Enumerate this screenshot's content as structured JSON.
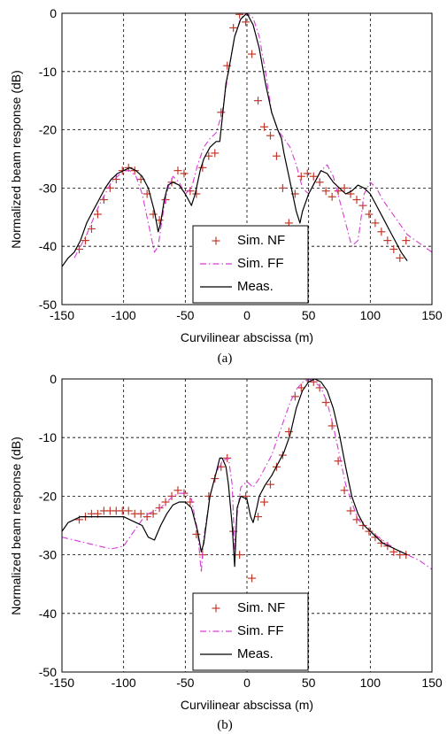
{
  "chart_data": [
    {
      "type": "line",
      "caption": "(a)",
      "xlabel": "Curvilinear abscissa (m)",
      "ylabel": "Normalized beam response (dB)",
      "xlim": [
        -150,
        150
      ],
      "ylim": [
        -50,
        0
      ],
      "xticks": [
        -150,
        -100,
        -50,
        0,
        50,
        100,
        150
      ],
      "yticks": [
        -50,
        -40,
        -30,
        -20,
        -10,
        0
      ],
      "grid": "dashed",
      "legend_position": "bottom-right",
      "series": [
        {
          "name": "Sim. NF",
          "style": "markers-plus",
          "color": "#c0392b",
          "x": [
            -136,
            -131,
            -126,
            -121,
            -116,
            -111,
            -106,
            -101,
            -96,
            -91,
            -86,
            -81,
            -76,
            -71,
            -66,
            -61,
            -56,
            -51,
            -46,
            -41,
            -36,
            -31,
            -26,
            -21,
            -16,
            -11,
            -6,
            -1,
            4,
            9,
            14,
            19,
            24,
            29,
            34,
            39,
            44,
            49,
            54,
            59,
            64,
            69,
            74,
            79,
            84,
            89,
            94,
            99,
            104,
            109,
            114,
            119,
            124,
            129
          ],
          "y": [
            -40.5,
            -39,
            -37,
            -34.5,
            -32,
            -30,
            -28.5,
            -27,
            -26.5,
            -27,
            -28.5,
            -31,
            -34.5,
            -35.5,
            -32,
            -29,
            -27,
            -27.5,
            -30.5,
            -31,
            -26.5,
            -24.5,
            -24,
            -17,
            -9,
            -2.5,
            -0.2,
            -1.5,
            -7,
            -15,
            -19.5,
            -21,
            -24.5,
            -30,
            -36,
            -31,
            -28,
            -27.5,
            -28,
            -29,
            -30.5,
            -31.5,
            -30.5,
            -30,
            -31,
            -32,
            -33,
            -34.5,
            -36,
            -37.5,
            -39,
            -40.5,
            -42,
            -39
          ]
        },
        {
          "name": "Sim. FF",
          "style": "dash-dot",
          "color": "#d63cd6",
          "x": [
            -140,
            -130,
            -120,
            -110,
            -100,
            -95,
            -90,
            -85,
            -80,
            -75,
            -72,
            -70,
            -67,
            -64,
            -60,
            -55,
            -50,
            -45,
            -40,
            -35,
            -30,
            -25,
            -20,
            -15,
            -10,
            -5,
            0,
            5,
            10,
            15,
            20,
            25,
            30,
            35,
            40,
            45,
            50,
            55,
            60,
            65,
            70,
            75,
            80,
            85,
            90,
            92,
            95,
            100,
            105,
            110,
            115,
            120,
            125,
            130,
            140,
            150
          ],
          "y": [
            -42,
            -38,
            -33,
            -29,
            -27,
            -27,
            -28,
            -31,
            -36,
            -41,
            -40,
            -37,
            -33,
            -30,
            -28,
            -29,
            -31,
            -30,
            -26,
            -23,
            -21.5,
            -20.5,
            -17,
            -10,
            -4,
            -0.8,
            0,
            -0.8,
            -4,
            -10,
            -17,
            -20,
            -21.5,
            -23,
            -26,
            -30,
            -31,
            -29,
            -27,
            -26,
            -28,
            -32,
            -36,
            -40,
            -39,
            -36,
            -31,
            -29,
            -30,
            -32,
            -33.5,
            -35,
            -36.5,
            -38,
            -39.5,
            -41
          ]
        },
        {
          "name": "Meas.",
          "style": "solid",
          "color": "#000000",
          "x": [
            -150,
            -145,
            -140,
            -135,
            -130,
            -125,
            -120,
            -115,
            -110,
            -105,
            -100,
            -95,
            -90,
            -85,
            -80,
            -75,
            -72,
            -70,
            -67,
            -64,
            -60,
            -55,
            -50,
            -45,
            -42,
            -38,
            -35,
            -30,
            -25,
            -22,
            -20,
            -17,
            -15,
            -10,
            -5,
            0,
            5,
            10,
            15,
            20,
            25,
            28,
            30,
            35,
            40,
            43,
            45,
            50,
            55,
            60,
            65,
            70,
            75,
            80,
            85,
            90,
            95,
            100,
            105,
            110,
            115,
            120,
            125,
            130
          ],
          "y": [
            -43.5,
            -42,
            -41,
            -39,
            -36,
            -34,
            -32,
            -30,
            -28.5,
            -27.5,
            -27,
            -26.5,
            -27,
            -28,
            -30,
            -34,
            -37.5,
            -36,
            -32,
            -29.5,
            -29,
            -29.5,
            -31,
            -33,
            -31,
            -27,
            -25,
            -23,
            -22,
            -22,
            -18,
            -12,
            -10,
            -4,
            -1,
            0,
            -2,
            -6,
            -12,
            -17,
            -20,
            -21.5,
            -24,
            -29,
            -34,
            -36,
            -34,
            -31,
            -29,
            -27,
            -27.5,
            -29,
            -30,
            -31,
            -30.5,
            -29.5,
            -30,
            -31,
            -33,
            -35,
            -37,
            -39,
            -41,
            -42.5
          ]
        }
      ]
    },
    {
      "type": "line",
      "caption": "(b)",
      "xlabel": "Curvilinear abscissa (m)",
      "ylabel": "Normalized beam response (dB)",
      "xlim": [
        -150,
        150
      ],
      "ylim": [
        -50,
        0
      ],
      "xticks": [
        -150,
        -100,
        -50,
        0,
        50,
        100,
        150
      ],
      "yticks": [
        -50,
        -40,
        -30,
        -20,
        -10,
        0
      ],
      "grid": "dashed",
      "legend_position": "bottom-right",
      "series": [
        {
          "name": "Sim. NF",
          "style": "markers-plus",
          "color": "#c0392b",
          "x": [
            -136,
            -131,
            -126,
            -121,
            -116,
            -111,
            -106,
            -101,
            -96,
            -91,
            -86,
            -81,
            -76,
            -71,
            -66,
            -61,
            -56,
            -51,
            -46,
            -41,
            -36,
            -31,
            -26,
            -21,
            -16,
            -11,
            -6,
            -1,
            4,
            9,
            14,
            19,
            24,
            29,
            34,
            39,
            44,
            49,
            54,
            59,
            64,
            69,
            74,
            79,
            84,
            89,
            94,
            99,
            104,
            109,
            114,
            119,
            124,
            129
          ],
          "y": [
            -24,
            -23.5,
            -23,
            -23,
            -22.5,
            -22.5,
            -22.5,
            -22.5,
            -22.5,
            -23,
            -23,
            -23.5,
            -23,
            -22,
            -21,
            -20,
            -19,
            -19.5,
            -21,
            -26.5,
            -30,
            -20,
            -17,
            -15,
            -13.5,
            -26,
            -30,
            -20,
            -34,
            -23.5,
            -21,
            -18,
            -15,
            -13,
            -9,
            -3,
            -1.5,
            0,
            -0.5,
            -1.5,
            -4,
            -8,
            -14,
            -19,
            -22.5,
            -24,
            -25,
            -26,
            -27,
            -28,
            -28.5,
            -29.5,
            -30,
            -30
          ]
        },
        {
          "name": "Sim. FF",
          "style": "dash-dot",
          "color": "#d63cd6",
          "x": [
            -150,
            -140,
            -130,
            -120,
            -110,
            -100,
            -95,
            -90,
            -85,
            -80,
            -75,
            -70,
            -65,
            -60,
            -55,
            -50,
            -45,
            -40,
            -37,
            -35,
            -30,
            -25,
            -20,
            -15,
            -12,
            -10,
            -8,
            -5,
            0,
            5,
            10,
            15,
            20,
            25,
            30,
            35,
            40,
            45,
            50,
            55,
            60,
            65,
            70,
            75,
            80,
            85,
            90,
            100,
            110,
            120,
            130,
            140,
            150
          ],
          "y": [
            -27,
            -27.5,
            -28,
            -28.5,
            -29,
            -28.5,
            -27,
            -25.5,
            -24,
            -23,
            -22.5,
            -22,
            -21,
            -20,
            -19.5,
            -19.5,
            -20.5,
            -26,
            -33,
            -27,
            -20,
            -16,
            -14,
            -13.5,
            -18,
            -29,
            -23,
            -18.5,
            -17.5,
            -18.5,
            -17,
            -15,
            -13,
            -10,
            -7,
            -4,
            -1.8,
            -0.6,
            0,
            -0.5,
            -1.5,
            -4,
            -8,
            -13,
            -18,
            -21,
            -24,
            -26,
            -27.5,
            -29,
            -30,
            -31,
            -32.5
          ]
        },
        {
          "name": "Meas.",
          "style": "solid",
          "color": "#000000",
          "x": [
            -150,
            -145,
            -140,
            -135,
            -130,
            -125,
            -120,
            -115,
            -110,
            -105,
            -100,
            -95,
            -90,
            -85,
            -80,
            -75,
            -70,
            -65,
            -60,
            -55,
            -50,
            -45,
            -40,
            -37,
            -35,
            -30,
            -25,
            -22,
            -20,
            -17,
            -15,
            -12,
            -10,
            -8,
            -5,
            0,
            3,
            5,
            8,
            10,
            15,
            20,
            25,
            30,
            35,
            40,
            45,
            50,
            55,
            60,
            65,
            70,
            75,
            80,
            85,
            90,
            95,
            100,
            105,
            110,
            115,
            120,
            125,
            130
          ],
          "y": [
            -26,
            -24.5,
            -24,
            -23.5,
            -23.5,
            -23.5,
            -23.5,
            -23.5,
            -23.5,
            -23.5,
            -23.5,
            -24,
            -24.5,
            -25,
            -27,
            -27.5,
            -25,
            -23,
            -21.5,
            -21,
            -21,
            -22,
            -26,
            -29.5,
            -28,
            -20,
            -16,
            -13.5,
            -13.5,
            -15,
            -18,
            -25,
            -32,
            -22,
            -20,
            -20.5,
            -23.5,
            -24.5,
            -22,
            -20,
            -18,
            -16.5,
            -14.5,
            -12.5,
            -9.5,
            -5,
            -2,
            -0.5,
            0,
            -0.5,
            -2,
            -5,
            -9.5,
            -15,
            -20,
            -23,
            -25,
            -26,
            -27,
            -28,
            -28.5,
            -29,
            -29.5,
            -30
          ]
        }
      ]
    }
  ]
}
